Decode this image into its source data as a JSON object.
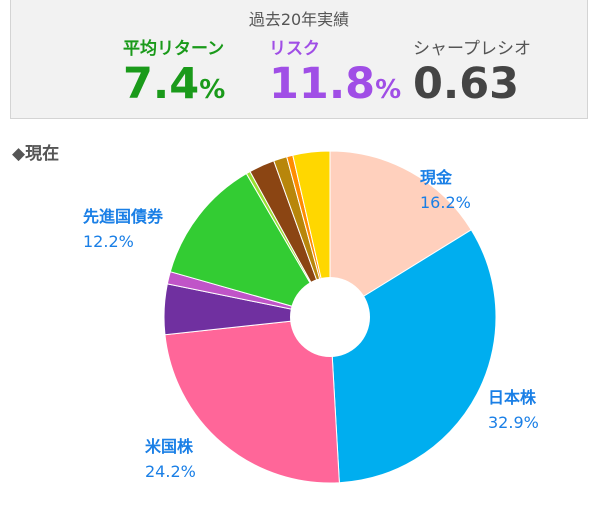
{
  "performance": {
    "title": "過去20年実績",
    "return": {
      "label": "平均リターン",
      "value": "7.4",
      "unit": "%",
      "color": "#1a9a1a"
    },
    "risk": {
      "label": "リスク",
      "value": "11.8",
      "unit": "%",
      "color": "#a04ee6"
    },
    "sharpe": {
      "label": "シャープレシオ",
      "value": "0.63"
    }
  },
  "section": {
    "heading": "◆現在"
  },
  "chart_data": {
    "type": "pie",
    "donut": true,
    "start_angle_deg": 0,
    "direction": "clockwise",
    "slices": [
      {
        "label": "現金",
        "value": 16.2,
        "value_label": "16.2%",
        "color": "#ffd0bd"
      },
      {
        "label": "日本株",
        "value": 32.9,
        "value_label": "32.9%",
        "color": "#00aeef"
      },
      {
        "label": "米国株",
        "value": 24.2,
        "value_label": "24.2%",
        "color": "#ff6699"
      },
      {
        "label": "",
        "value": 4.9,
        "value_label": "",
        "color": "#7030a0"
      },
      {
        "label": "",
        "value": 1.2,
        "value_label": "",
        "color": "#c054c8"
      },
      {
        "label": "先進国債券",
        "value": 12.2,
        "value_label": "12.2%",
        "color": "#33cc33"
      },
      {
        "label": "",
        "value": 0.4,
        "value_label": "",
        "color": "#99e033"
      },
      {
        "label": "",
        "value": 2.5,
        "value_label": "",
        "color": "#8b4513"
      },
      {
        "label": "",
        "value": 1.3,
        "value_label": "",
        "color": "#b8860b"
      },
      {
        "label": "",
        "value": 0.6,
        "value_label": "",
        "color": "#ff8c00"
      },
      {
        "label": "",
        "value": 3.6,
        "value_label": "",
        "color": "#ffd700"
      }
    ]
  }
}
